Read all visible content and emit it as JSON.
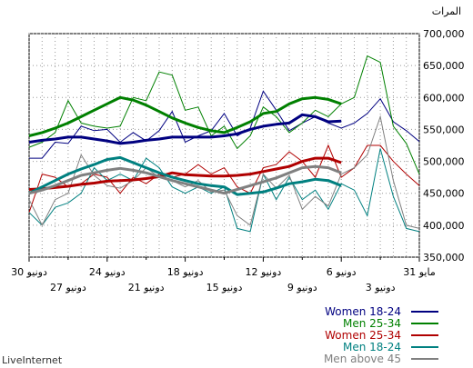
{
  "chart_data": {
    "type": "line",
    "title": "المرات",
    "watermark": "LiveInternet",
    "xlim": [
      "2014-05-31",
      "2014-06-30"
    ],
    "ylim": [
      350000,
      700000
    ],
    "y_ticks": [
      "350,000",
      "400,000",
      "450,000",
      "500,000",
      "550,000",
      "600,000",
      "650,000",
      "700,000"
    ],
    "x_ticks_upper": [
      {
        "label": "30 دونيو",
        "date": "2014-06-30"
      },
      {
        "label": "24 دونيو",
        "date": "2014-06-24"
      },
      {
        "label": "18 دونيو",
        "date": "2014-06-18"
      },
      {
        "label": "12 دونيو",
        "date": "2014-06-12"
      },
      {
        "label": "6 دونيو",
        "date": "2014-06-06"
      },
      {
        "label": "31 مايو",
        "date": "2014-05-31"
      }
    ],
    "x_ticks_lower": [
      {
        "label": "27 دونيو",
        "date": "2014-06-27"
      },
      {
        "label": "21 دونيو",
        "date": "2014-06-21"
      },
      {
        "label": "15 دونيو",
        "date": "2014-06-15"
      },
      {
        "label": "9 دونيو",
        "date": "2014-06-09"
      },
      {
        "label": "3 دونيو",
        "date": "2014-06-03"
      }
    ],
    "grid": true,
    "legend_position": "bottom-right",
    "x_dates": [
      "2014-05-31",
      "2014-06-01",
      "2014-06-02",
      "2014-06-03",
      "2014-06-04",
      "2014-06-05",
      "2014-06-06",
      "2014-06-07",
      "2014-06-08",
      "2014-06-09",
      "2014-06-10",
      "2014-06-11",
      "2014-06-12",
      "2014-06-13",
      "2014-06-14",
      "2014-06-15",
      "2014-06-16",
      "2014-06-17",
      "2014-06-18",
      "2014-06-19",
      "2014-06-20",
      "2014-06-21",
      "2014-06-22",
      "2014-06-23",
      "2014-06-24",
      "2014-06-25",
      "2014-06-26",
      "2014-06-27",
      "2014-06-28",
      "2014-06-29",
      "2014-06-30"
    ],
    "series": [
      {
        "name": "Women 18-24",
        "color": "#000080",
        "daily": [
          531000,
          548000,
          562000,
          598000,
          575000,
          560000,
          552000,
          560000,
          570000,
          560000,
          548000,
          580000,
          610000,
          552000,
          540000,
          575000,
          548000,
          540000,
          530000,
          578000,
          548000,
          532000,
          545000,
          530000,
          550000,
          548000,
          555000,
          528000,
          530000,
          505000,
          505000
        ],
        "trend_dates": [
          "2014-06-06",
          "2014-06-30"
        ],
        "trend": [
          563000,
          562000,
          570000,
          573000,
          560000,
          558000,
          555000,
          550000,
          543000,
          540000,
          538000,
          538000,
          538000,
          538000,
          535000,
          533000,
          530000,
          528000,
          532000,
          535000,
          538000,
          538000,
          535000,
          533000,
          530000
        ]
      },
      {
        "name": "Men 25-34",
        "color": "#008000",
        "daily": [
          480000,
          528000,
          555000,
          655000,
          665000,
          600000,
          590000,
          570000,
          580000,
          560000,
          545000,
          570000,
          585000,
          540000,
          520000,
          555000,
          540000,
          585000,
          580000,
          635000,
          640000,
          595000,
          600000,
          555000,
          552000,
          555000,
          560000,
          595000,
          545000,
          530000,
          522000
        ],
        "trend_dates": [
          "2014-06-06",
          "2014-06-30"
        ],
        "trend": [
          590000,
          597000,
          600000,
          598000,
          590000,
          578000,
          575000,
          562000,
          553000,
          545000,
          548000,
          553000,
          560000,
          568000,
          578000,
          588000,
          596000,
          600000,
          590000,
          580000,
          570000,
          560000,
          552000,
          545000,
          540000
        ]
      },
      {
        "name": "Women 25-34",
        "color": "#b00000",
        "daily": [
          462000,
          480000,
          500000,
          525000,
          525000,
          490000,
          475000,
          525000,
          475000,
          500000,
          515000,
          495000,
          490000,
          450000,
          460000,
          490000,
          480000,
          495000,
          480000,
          475000,
          480000,
          465000,
          475000,
          450000,
          475000,
          480000,
          465000,
          460000,
          475000,
          480000,
          420000
        ],
        "trend_dates": [
          "2014-06-06",
          "2014-06-30"
        ],
        "trend": [
          498000,
          505000,
          505000,
          500000,
          492000,
          488000,
          484000,
          480000,
          478000,
          477000,
          477000,
          478000,
          479000,
          482000,
          476000,
          473000,
          471000,
          470000,
          469000,
          466000,
          464000,
          461000,
          459000,
          457000,
          456000
        ]
      },
      {
        "name": "Men 18-24",
        "color": "#008080",
        "daily": [
          390000,
          395000,
          445000,
          520000,
          415000,
          455000,
          465000,
          425000,
          455000,
          440000,
          475000,
          440000,
          480000,
          390000,
          395000,
          460000,
          450000,
          460000,
          450000,
          460000,
          490000,
          505000,
          470000,
          480000,
          470000,
          490000,
          450000,
          435000,
          428000,
          400000,
          420000
        ],
        "trend_dates": [
          "2014-06-06",
          "2014-06-30"
        ],
        "trend": [
          462000,
          470000,
          472000,
          468000,
          465000,
          458000,
          452000,
          450000,
          448000,
          460000,
          462000,
          465000,
          470000,
          475000,
          482000,
          490000,
          498000,
          506000,
          503000,
          495000,
          488000,
          480000,
          470000,
          460000,
          450000
        ]
      },
      {
        "name": "Men above 45",
        "color": "#808080",
        "daily": [
          395000,
          400000,
          470000,
          570000,
          510000,
          490000,
          480000,
          430000,
          445000,
          425000,
          478000,
          458000,
          480000,
          400000,
          415000,
          455000,
          452000,
          470000,
          460000,
          470000,
          475000,
          490000,
          470000,
          458000,
          462000,
          478000,
          510000,
          450000,
          440000,
          400000,
          440000
        ],
        "trend_dates": [
          "2014-06-06",
          "2014-06-30"
        ],
        "trend": [
          482000,
          490000,
          492000,
          490000,
          482000,
          474000,
          468000,
          462000,
          456000,
          450000,
          455000,
          460000,
          465000,
          470000,
          476000,
          482000,
          486000,
          489000,
          486000,
          482000,
          478000,
          470000,
          462000,
          455000,
          450000
        ]
      }
    ]
  }
}
